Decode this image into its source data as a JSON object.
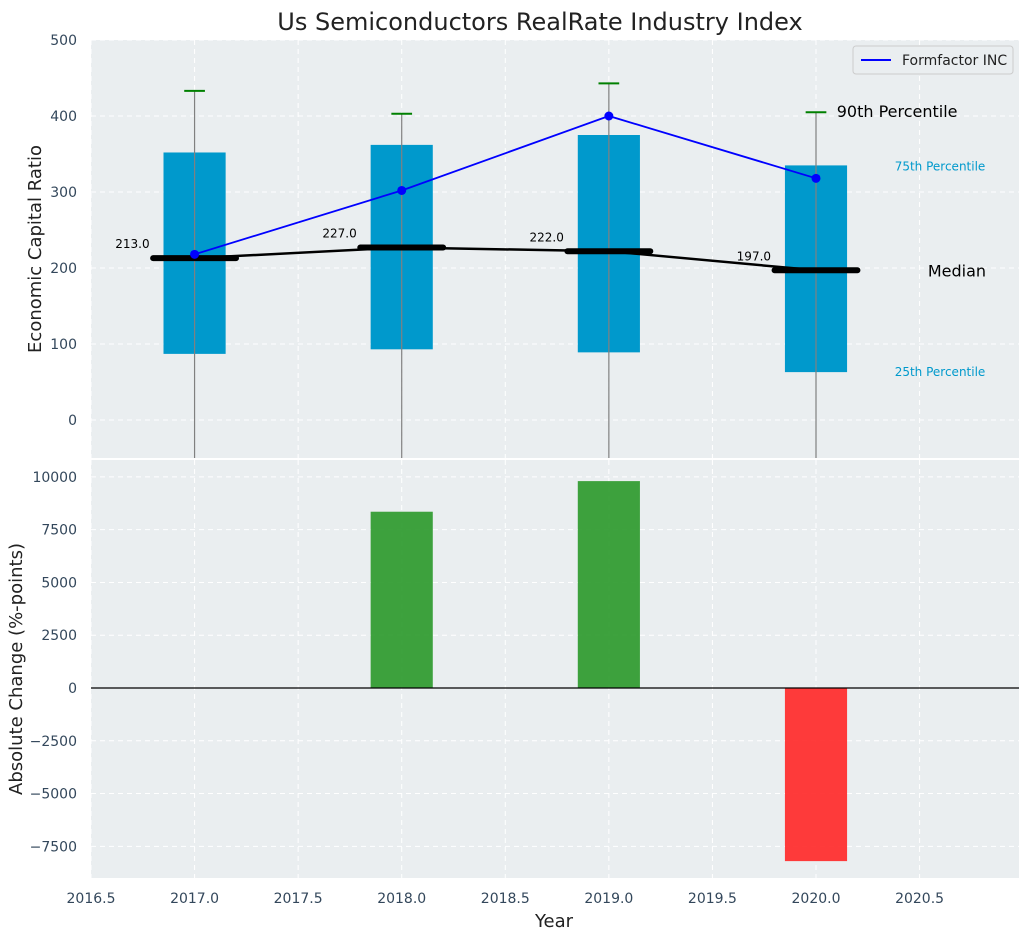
{
  "chart_data": {
    "title": "Us Semiconductors RealRate Industry Index",
    "xlabel": "Year",
    "type": "bar",
    "x_ticks": [
      "2016.5",
      "2017.0",
      "2017.5",
      "2018.0",
      "2018.5",
      "2019.0",
      "2019.5",
      "2020.0",
      "2020.5"
    ],
    "xlim": [
      2016.5,
      2020.98
    ],
    "grid": true,
    "colors": {
      "box": "#0099cc",
      "company": "#0000ff",
      "median": "#000000",
      "whisker_cap": "#008000",
      "positive": "#2e9a2e",
      "negative": "#ff2a2a",
      "panel_bg": "#eaeef0"
    },
    "panels": [
      {
        "name": "top",
        "type": "box",
        "ylabel": "Economic Capital Ratio",
        "ylim": [
          -50,
          500
        ],
        "y_ticks": [
          "0",
          "100",
          "200",
          "300",
          "400",
          "500"
        ],
        "y_tick_values": [
          0,
          100,
          200,
          300,
          400,
          500
        ],
        "legend": {
          "placement": "top-right",
          "entries": [
            "Formfactor INC"
          ]
        },
        "years": [
          2017,
          2018,
          2019,
          2020
        ],
        "p25": [
          87,
          93,
          89,
          63
        ],
        "p75": [
          352,
          362,
          375,
          335
        ],
        "p90": [
          433,
          403,
          443,
          405
        ],
        "median": [
          213,
          227,
          222,
          197
        ],
        "median_labels": [
          "213.0",
          "227.0",
          "222.0",
          "197.0"
        ],
        "company": {
          "name": "Formfactor INC",
          "values": [
            218,
            302,
            400,
            318
          ]
        },
        "annotations": {
          "p90": "90th Percentile",
          "p75": "75th Percentile",
          "median": "Median",
          "p25": "25th Percentile"
        }
      },
      {
        "name": "bottom",
        "type": "bar",
        "ylabel": "Absolute Change (%-points)",
        "ylim": [
          -9000,
          10800
        ],
        "y_ticks": [
          "−7500",
          "−5000",
          "−2500",
          "0",
          "2500",
          "5000",
          "7500",
          "10000"
        ],
        "y_tick_values": [
          -7500,
          -5000,
          -2500,
          0,
          2500,
          5000,
          7500,
          10000
        ],
        "years": [
          2018,
          2019,
          2020
        ],
        "values": [
          8350,
          9800,
          -8200
        ]
      }
    ]
  }
}
